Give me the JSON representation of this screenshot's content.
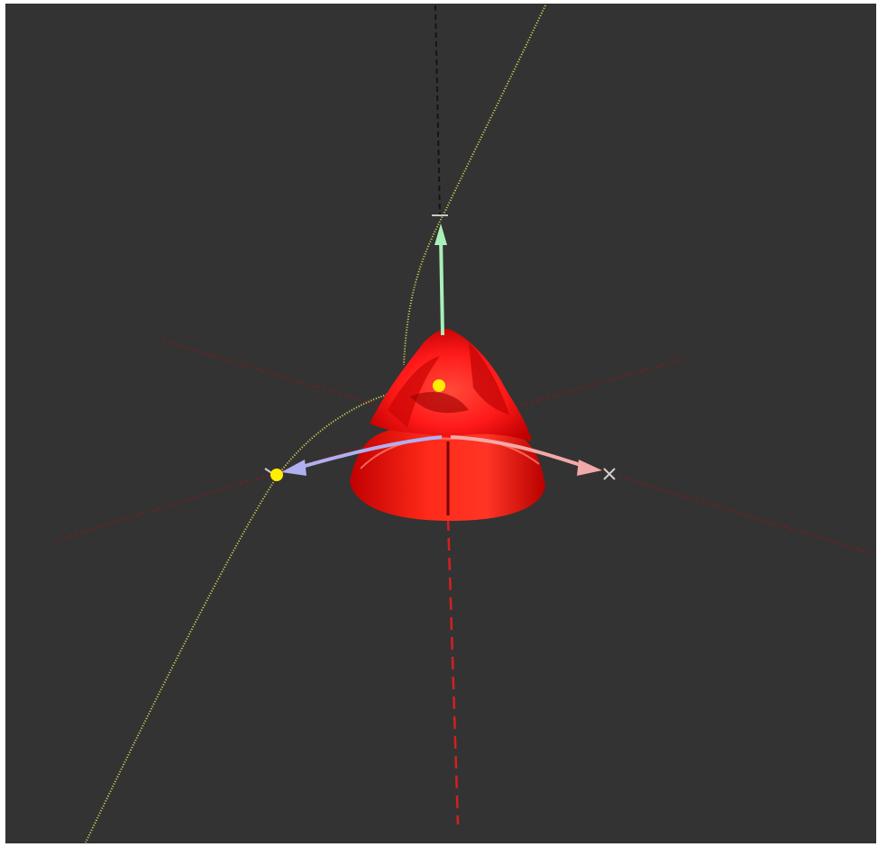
{
  "scene": {
    "background_color": "#333333",
    "frame_color": "#ffffff",
    "axes": [
      {
        "id": "x-axis",
        "label": "x",
        "color": "#f2a9a9",
        "line_color": "#8a2a2a"
      },
      {
        "id": "y-axis",
        "label": "y",
        "color": "#b0b0f0",
        "line_color": "#6a2222"
      },
      {
        "id": "z-axis",
        "label": "z",
        "color": "#a8f0b8",
        "line_color": "#d42020"
      }
    ],
    "surface": {
      "name": "cone-surface",
      "color": "#ff1a1a",
      "shadow_color": "#b00000"
    },
    "curve": {
      "name": "parametric-curve",
      "color": "#e6e05a"
    },
    "points": [
      {
        "name": "point-on-cone",
        "color": "#ffee00"
      },
      {
        "name": "point-on-curve",
        "color": "#ffee00"
      }
    ]
  }
}
